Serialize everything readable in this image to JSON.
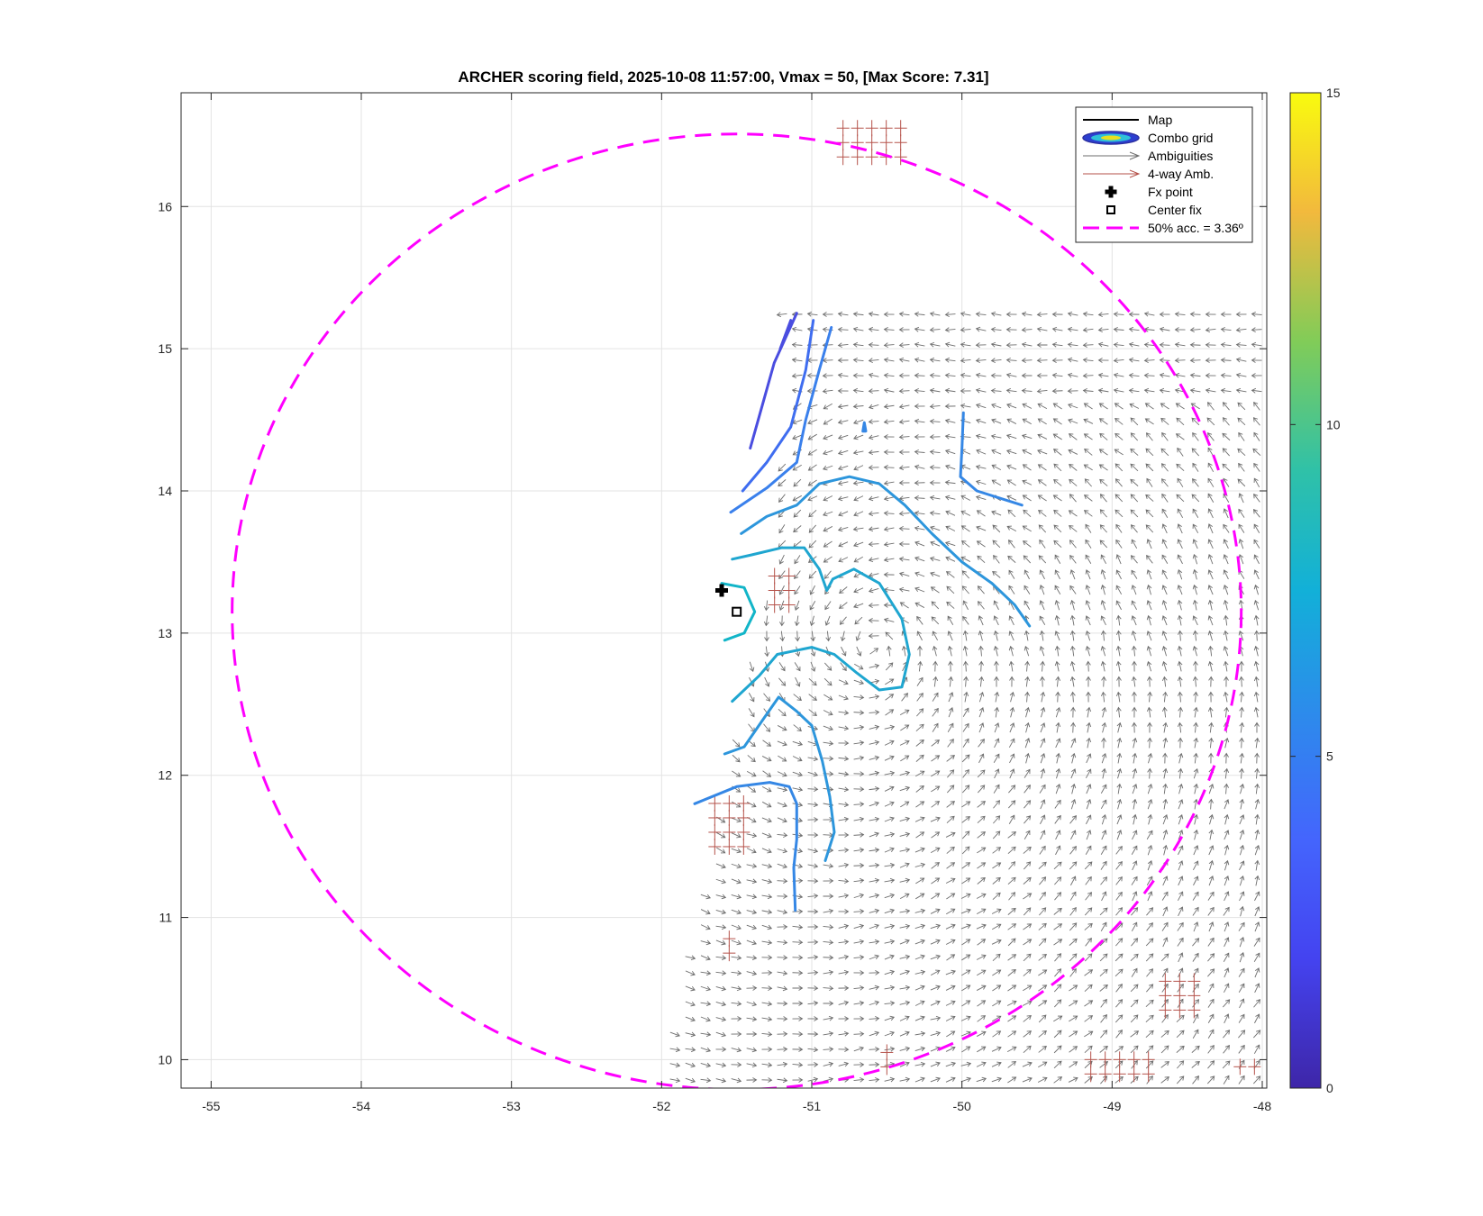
{
  "chart_data": {
    "type": "line",
    "title": "ARCHER scoring field, 2025-10-08 11:57:00, Vmax = 50, [Max Score: 7.31]",
    "xlabel": "",
    "ylabel": "",
    "xlim": [
      -55.2,
      -47.97
    ],
    "ylim": [
      9.8,
      16.8
    ],
    "xticks": [
      -55,
      -54,
      -53,
      -52,
      -51,
      -50,
      -49,
      -48
    ],
    "yticks": [
      10,
      11,
      12,
      13,
      14,
      15,
      16
    ],
    "grid": true,
    "colorbar": {
      "min": 0,
      "max": 15,
      "ticks": [
        0,
        5,
        10,
        15
      ]
    },
    "legend": {
      "placement": "top-right",
      "entries": [
        {
          "label": "Map",
          "style": "line",
          "color": "#000000"
        },
        {
          "label": "Combo grid",
          "style": "ellipse"
        },
        {
          "label": "Ambiguities",
          "style": "arrow",
          "color": "#6e6e6e"
        },
        {
          "label": "4-way Amb.",
          "style": "arrow",
          "color": "#b5524a"
        },
        {
          "label": "Fx point",
          "style": "plus",
          "color": "#000000"
        },
        {
          "label": "Center fix",
          "style": "square",
          "color": "#000000"
        },
        {
          "label": "50% acc. = 3.36º",
          "style": "dashed",
          "color": "#ff00ff"
        }
      ]
    },
    "fx_point": {
      "x": -51.6,
      "y": 13.3
    },
    "center_fix": {
      "x": -51.5,
      "y": 13.15
    },
    "accuracy_circle": {
      "center_x": -51.5,
      "center_y": 13.15,
      "radius_deg": 3.36,
      "color": "#ff00ff"
    },
    "swath": [
      [
        -51.2,
        15.25
      ],
      [
        -47.97,
        15.25
      ],
      [
        -47.97,
        9.8
      ],
      [
        -52.0,
        9.8
      ],
      [
        -51.55,
        12.0
      ],
      [
        -51.3,
        13.3
      ],
      [
        -51.15,
        14.6
      ]
    ],
    "contours": [
      {
        "level": 3.0,
        "color": "#4a4de0",
        "points": [
          [
            -51.1,
            15.25
          ],
          [
            -51.25,
            14.9
          ],
          [
            -51.33,
            14.6
          ],
          [
            -51.41,
            14.3
          ]
        ]
      },
      {
        "level": 3.0,
        "color": "#4a4de0",
        "points": [
          [
            -51.14,
            15.2
          ],
          [
            -51.21,
            15.0
          ]
        ]
      },
      {
        "level": 4.0,
        "color": "#3f6df0",
        "points": [
          [
            -50.99,
            15.2
          ],
          [
            -51.04,
            14.85
          ],
          [
            -51.14,
            14.45
          ],
          [
            -51.3,
            14.2
          ],
          [
            -51.46,
            14.0
          ]
        ]
      },
      {
        "level": 4.5,
        "color": "#3a80ec",
        "points": [
          [
            -50.87,
            15.15
          ],
          [
            -50.95,
            14.85
          ],
          [
            -51.04,
            14.5
          ],
          [
            -51.1,
            14.2
          ],
          [
            -51.3,
            14.02
          ],
          [
            -51.54,
            13.85
          ]
        ]
      },
      {
        "level": 5.0,
        "color": "#3587e5",
        "points": [
          [
            -49.99,
            14.55
          ],
          [
            -50.0,
            14.3
          ],
          [
            -50.01,
            14.1
          ],
          [
            -49.9,
            14.0
          ],
          [
            -49.6,
            13.9
          ]
        ]
      },
      {
        "level": 5.0,
        "color": "#3587e5",
        "points": [
          [
            -50.66,
            14.42
          ],
          [
            -50.65,
            14.48
          ],
          [
            -50.64,
            14.42
          ],
          [
            -50.66,
            14.42
          ]
        ]
      },
      {
        "level": 5.0,
        "color": "#3587e5",
        "points": [
          [
            -51.78,
            11.8
          ],
          [
            -51.5,
            11.92
          ],
          [
            -51.28,
            11.95
          ],
          [
            -51.15,
            11.92
          ],
          [
            -51.1,
            11.8
          ],
          [
            -51.1,
            11.55
          ],
          [
            -51.12,
            11.35
          ],
          [
            -51.11,
            11.05
          ]
        ]
      },
      {
        "level": 5.5,
        "color": "#2d96dc",
        "points": [
          [
            -51.58,
            12.15
          ],
          [
            -51.45,
            12.2
          ],
          [
            -51.32,
            12.4
          ],
          [
            -51.22,
            12.55
          ],
          [
            -51.1,
            12.45
          ],
          [
            -51.0,
            12.35
          ],
          [
            -50.93,
            12.1
          ],
          [
            -50.88,
            11.85
          ],
          [
            -50.85,
            11.6
          ],
          [
            -50.91,
            11.4
          ]
        ]
      },
      {
        "level": 5.5,
        "color": "#2d96dc",
        "points": [
          [
            -51.47,
            13.7
          ],
          [
            -51.3,
            13.82
          ],
          [
            -51.1,
            13.9
          ],
          [
            -50.95,
            14.05
          ],
          [
            -50.75,
            14.1
          ],
          [
            -50.55,
            14.05
          ],
          [
            -50.38,
            13.9
          ],
          [
            -50.2,
            13.7
          ],
          [
            -50.0,
            13.5
          ],
          [
            -49.8,
            13.35
          ],
          [
            -49.65,
            13.2
          ],
          [
            -49.55,
            13.05
          ]
        ]
      },
      {
        "level": 6.0,
        "color": "#1fa6d0",
        "points": [
          [
            -51.53,
            12.52
          ],
          [
            -51.35,
            12.7
          ],
          [
            -51.23,
            12.85
          ],
          [
            -51.0,
            12.9
          ],
          [
            -50.85,
            12.85
          ],
          [
            -50.7,
            12.72
          ],
          [
            -50.55,
            12.6
          ],
          [
            -50.4,
            12.62
          ],
          [
            -50.35,
            12.85
          ],
          [
            -50.4,
            13.1
          ],
          [
            -50.55,
            13.35
          ],
          [
            -50.72,
            13.45
          ],
          [
            -50.86,
            13.38
          ],
          [
            -50.9,
            13.3
          ],
          [
            -50.95,
            13.45
          ],
          [
            -51.05,
            13.6
          ],
          [
            -51.2,
            13.6
          ],
          [
            -51.4,
            13.55
          ],
          [
            -51.53,
            13.52
          ]
        ]
      },
      {
        "level": 7.0,
        "color": "#12b5c8",
        "points": [
          [
            -51.6,
            13.35
          ],
          [
            -51.45,
            13.32
          ],
          [
            -51.38,
            13.15
          ],
          [
            -51.45,
            13.0
          ],
          [
            -51.58,
            12.95
          ]
        ]
      }
    ]
  }
}
